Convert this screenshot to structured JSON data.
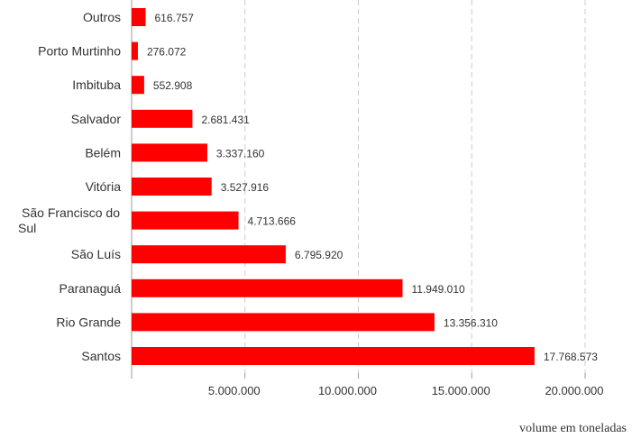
{
  "chart_data": {
    "type": "bar",
    "orientation": "horizontal",
    "categories": [
      "Outros",
      "Porto Murtinho",
      "Imbituba",
      "Salvador",
      "Belém",
      "Vitória",
      "São Francisco do Sul",
      "São Luís",
      "Paranaguá",
      "Rio Grande",
      "Santos"
    ],
    "category_lines": [
      [
        "Outros"
      ],
      [
        "Porto Murtinho"
      ],
      [
        "Imbituba"
      ],
      [
        "Salvador"
      ],
      [
        "Belém"
      ],
      [
        "Vitória"
      ],
      [
        "São Francisco do",
        "Sul"
      ],
      [
        "São Luís"
      ],
      [
        "Paranaguá"
      ],
      [
        "Rio Grande"
      ],
      [
        "Santos"
      ]
    ],
    "values": [
      616757,
      276072,
      552908,
      2681431,
      3337160,
      3527916,
      4713666,
      6795920,
      11949010,
      13356310,
      17768573
    ],
    "value_labels": [
      "616.757",
      "276.072",
      "552.908",
      "2.681.431",
      "3.337.160",
      "3.527.916",
      "4.713.666",
      "6.795.920",
      "11.949.010",
      "13.356.310",
      "17.768.573"
    ],
    "x_ticks": [
      5000000,
      10000000,
      15000000,
      20000000
    ],
    "x_tick_labels": [
      "5.000.000",
      "10.000.000",
      "15.000.000",
      "20.000.000"
    ],
    "xlim": [
      0,
      21000000
    ],
    "xlabel": "volume em toneladas",
    "bar_color": "#ff0000",
    "grid": "vertical dashed"
  }
}
